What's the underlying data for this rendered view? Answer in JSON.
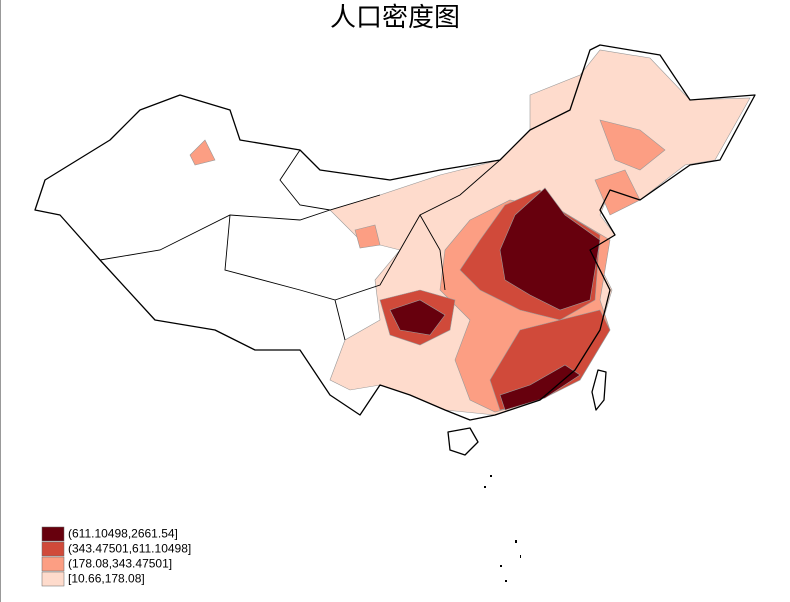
{
  "title": "人口密度图",
  "legend": [
    {
      "label": "(611.10498,2661.54]",
      "color": "#67000d"
    },
    {
      "label": "(343.47501,611.10498]",
      "color": "#d04a3a"
    },
    {
      "label": "(178.08,343.47501]",
      "color": "#fc9e83"
    },
    {
      "label": "[10.66,178.08]",
      "color": "#fedbcc"
    }
  ]
}
